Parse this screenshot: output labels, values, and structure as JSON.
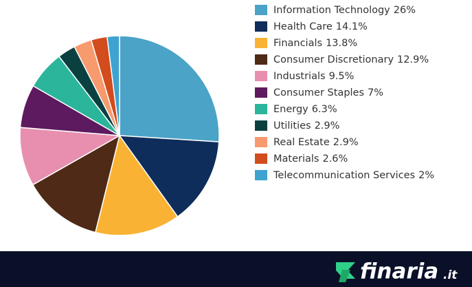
{
  "chart_data": {
    "type": "pie",
    "categories": [
      "Information Technology",
      "Health Care",
      "Financials",
      "Consumer Discretionary",
      "Industrials",
      "Consumer Staples",
      "Energy",
      "Utilities",
      "Real Estate",
      "Materials",
      "Telecommunication Services"
    ],
    "values": [
      26,
      14.1,
      13.8,
      12.9,
      9.5,
      7,
      6.3,
      2.9,
      2.9,
      2.6,
      2
    ],
    "value_labels": [
      "26%",
      "14.1%",
      "13.8%",
      "12.9%",
      "9.5%",
      "7%",
      "6.3%",
      "2.9%",
      "2.9%",
      "2.6%",
      "2%"
    ],
    "colors": [
      "#4ba3c8",
      "#0e2d5a",
      "#f9b233",
      "#4e2a17",
      "#e88fb0",
      "#5e1a5e",
      "#2bb59a",
      "#0a4040",
      "#f79a6e",
      "#d24c1d",
      "#3fa3d0"
    ],
    "legend": "right"
  },
  "footer": {
    "brand": "finaria",
    "domain": ".it"
  }
}
